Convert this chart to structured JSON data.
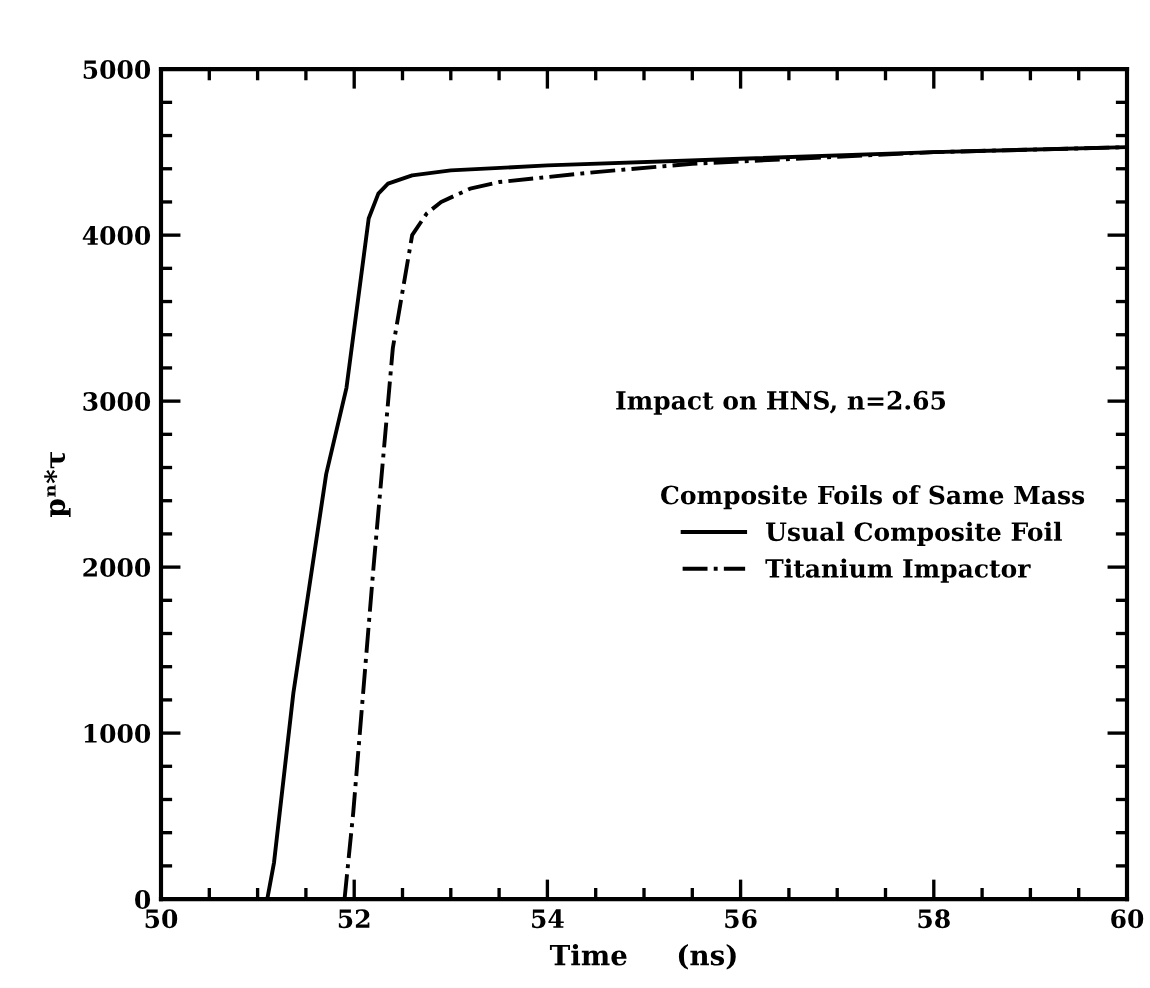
{
  "chart_data": {
    "type": "line",
    "xlabel": "Time     (ns)",
    "ylabel": "pⁿ*τ",
    "xlim": [
      50,
      60
    ],
    "ylim": [
      0,
      5000
    ],
    "xticks": [
      50,
      52,
      54,
      56,
      58,
      60
    ],
    "yticks": [
      0,
      1000,
      2000,
      3000,
      4000,
      5000
    ],
    "grid": false,
    "legend": "right",
    "legend_title": "Composite Foils of Same Mass",
    "annotations": [
      "Impact on HNS, n=2.65"
    ],
    "series": [
      {
        "name": "Usual Composite Foil",
        "color": "#000000",
        "line_style": "solid",
        "x": [
          51.1,
          51.17,
          51.37,
          51.71,
          51.92,
          52.15,
          52.25,
          52.35,
          52.6,
          53.0,
          54.0,
          56.0,
          58.0,
          60.0
        ],
        "values": [
          0,
          220,
          1240,
          2560,
          3080,
          4100,
          4250,
          4310,
          4360,
          4390,
          4420,
          4460,
          4500,
          4530
        ]
      },
      {
        "name": "Titanium Impactor",
        "color": "#000000",
        "line_style": "dashdot",
        "x": [
          51.9,
          51.99,
          52.2,
          52.4,
          52.6,
          52.75,
          52.9,
          53.2,
          53.5,
          54.5,
          55.5,
          58.0,
          60.0
        ],
        "values": [
          0,
          520,
          2000,
          3320,
          4000,
          4130,
          4200,
          4280,
          4320,
          4380,
          4430,
          4500,
          4530
        ]
      }
    ]
  }
}
